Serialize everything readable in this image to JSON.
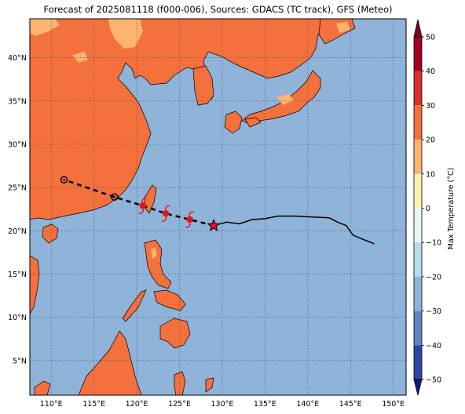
{
  "title": "Forecast of 2025081118 (f000-006), Sources: GDACS (TC track), GFS (Meteo)",
  "map": {
    "lon_range": [
      107.5,
      151.5
    ],
    "lat_range": [
      1,
      44.5
    ],
    "lon_ticks": [
      {
        "v": 110,
        "label": "110°E"
      },
      {
        "v": 115,
        "label": "115°E"
      },
      {
        "v": 120,
        "label": "120°E"
      },
      {
        "v": 125,
        "label": "125°E"
      },
      {
        "v": 130,
        "label": "130°E"
      },
      {
        "v": 135,
        "label": "135°E"
      },
      {
        "v": 140,
        "label": "140°E"
      },
      {
        "v": 145,
        "label": "145°E"
      },
      {
        "v": 150,
        "label": "150°E"
      }
    ],
    "lat_ticks": [
      {
        "v": 5,
        "label": "5°N"
      },
      {
        "v": 10,
        "label": "10°N"
      },
      {
        "v": 15,
        "label": "15°N"
      },
      {
        "v": 20,
        "label": "20°N"
      },
      {
        "v": 25,
        "label": "25°N"
      },
      {
        "v": 30,
        "label": "30°N"
      },
      {
        "v": 35,
        "label": "35°N"
      },
      {
        "v": 40,
        "label": "40°N"
      }
    ],
    "ocean_color": "#8fb3d9",
    "land_warm_color": "#f4703c",
    "land_mild_color": "#fdb46e",
    "colors": {
      "coast": "#000000",
      "grid": "#4a4a4a"
    }
  },
  "track": {
    "past_track": [
      [
        129.0,
        20.6
      ],
      [
        130.5,
        21.0
      ],
      [
        132.0,
        20.8
      ],
      [
        133.5,
        21.3
      ],
      [
        135.0,
        21.4
      ],
      [
        136.5,
        21.7
      ],
      [
        138.5,
        21.7
      ],
      [
        140.5,
        21.6
      ],
      [
        142.5,
        21.5
      ],
      [
        143.5,
        21.0
      ],
      [
        144.5,
        20.6
      ],
      [
        145.3,
        19.5
      ],
      [
        146.5,
        19.0
      ],
      [
        147.8,
        18.5
      ]
    ],
    "forecast_track": [
      [
        129.0,
        20.6
      ],
      [
        126.2,
        21.3
      ],
      [
        123.4,
        22.0
      ],
      [
        120.7,
        22.9
      ],
      [
        117.4,
        23.9
      ],
      [
        111.5,
        25.9
      ]
    ],
    "current_position": [
      129.0,
      20.6
    ],
    "typhoon_symbols": [
      [
        126.2,
        21.3
      ],
      [
        123.4,
        22.0
      ],
      [
        120.7,
        22.9
      ]
    ],
    "low_symbols": [
      [
        117.4,
        23.9
      ],
      [
        111.5,
        25.9
      ]
    ]
  },
  "colorbar": {
    "label": "Max Temperature (°C)",
    "ticks": [
      {
        "v": 50,
        "label": "50"
      },
      {
        "v": 40,
        "label": "40"
      },
      {
        "v": 30,
        "label": "30"
      },
      {
        "v": 20,
        "label": "20"
      },
      {
        "v": 10,
        "label": "10"
      },
      {
        "v": 0,
        "label": "0"
      },
      {
        "v": -10,
        "label": "−10"
      },
      {
        "v": -20,
        "label": "−20"
      },
      {
        "v": -30,
        "label": "−30"
      },
      {
        "v": -40,
        "label": "−40"
      },
      {
        "v": -50,
        "label": "−50"
      }
    ],
    "segments": [
      {
        "from": 40,
        "to": 50,
        "color": "#a50026"
      },
      {
        "from": 30,
        "to": 40,
        "color": "#d73027"
      },
      {
        "from": 20,
        "to": 30,
        "color": "#f4703c"
      },
      {
        "from": 10,
        "to": 20,
        "color": "#fdb46e"
      },
      {
        "from": 0,
        "to": 10,
        "color": "#fef0b0"
      },
      {
        "from": -10,
        "to": 0,
        "color": "#e8f4f6"
      },
      {
        "from": -20,
        "to": -10,
        "color": "#b8dcea"
      },
      {
        "from": -30,
        "to": -20,
        "color": "#8fb3d9"
      },
      {
        "from": -40,
        "to": -30,
        "color": "#5b85c0"
      },
      {
        "from": -50,
        "to": -40,
        "color": "#2f45a0"
      }
    ],
    "extend_max_color": "#800026",
    "extend_min_color": "#0c1a7a"
  }
}
